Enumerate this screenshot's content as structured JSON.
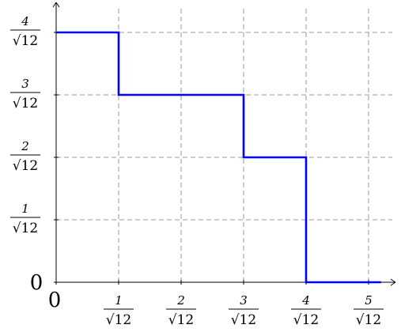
{
  "chart_data": {
    "type": "line",
    "step": true,
    "title": "",
    "xlabel": "",
    "ylabel": "",
    "line_color": "#0000ff",
    "grid": true,
    "xlim": [
      0,
      5.3
    ],
    "ylim": [
      0,
      4.3
    ],
    "unit_denominator": "√12",
    "x_ticks": [
      {
        "value": 0,
        "label": "0"
      },
      {
        "value": 1,
        "num": "1",
        "den": "√12"
      },
      {
        "value": 2,
        "num": "2",
        "den": "√12"
      },
      {
        "value": 3,
        "num": "3",
        "den": "√12"
      },
      {
        "value": 4,
        "num": "4",
        "den": "√12"
      },
      {
        "value": 5,
        "num": "5",
        "den": "√12"
      }
    ],
    "y_ticks": [
      {
        "value": 0,
        "label": "0"
      },
      {
        "value": 1,
        "num": "1",
        "den": "√12"
      },
      {
        "value": 2,
        "num": "2",
        "den": "√12"
      },
      {
        "value": 3,
        "num": "3",
        "den": "√12"
      },
      {
        "value": 4,
        "num": "4",
        "den": "√12"
      }
    ],
    "series": [
      {
        "x": [
          0,
          1,
          1,
          3,
          3,
          4,
          4,
          5.2
        ],
        "y": [
          4,
          4,
          3,
          3,
          2,
          2,
          0,
          0
        ]
      }
    ]
  }
}
